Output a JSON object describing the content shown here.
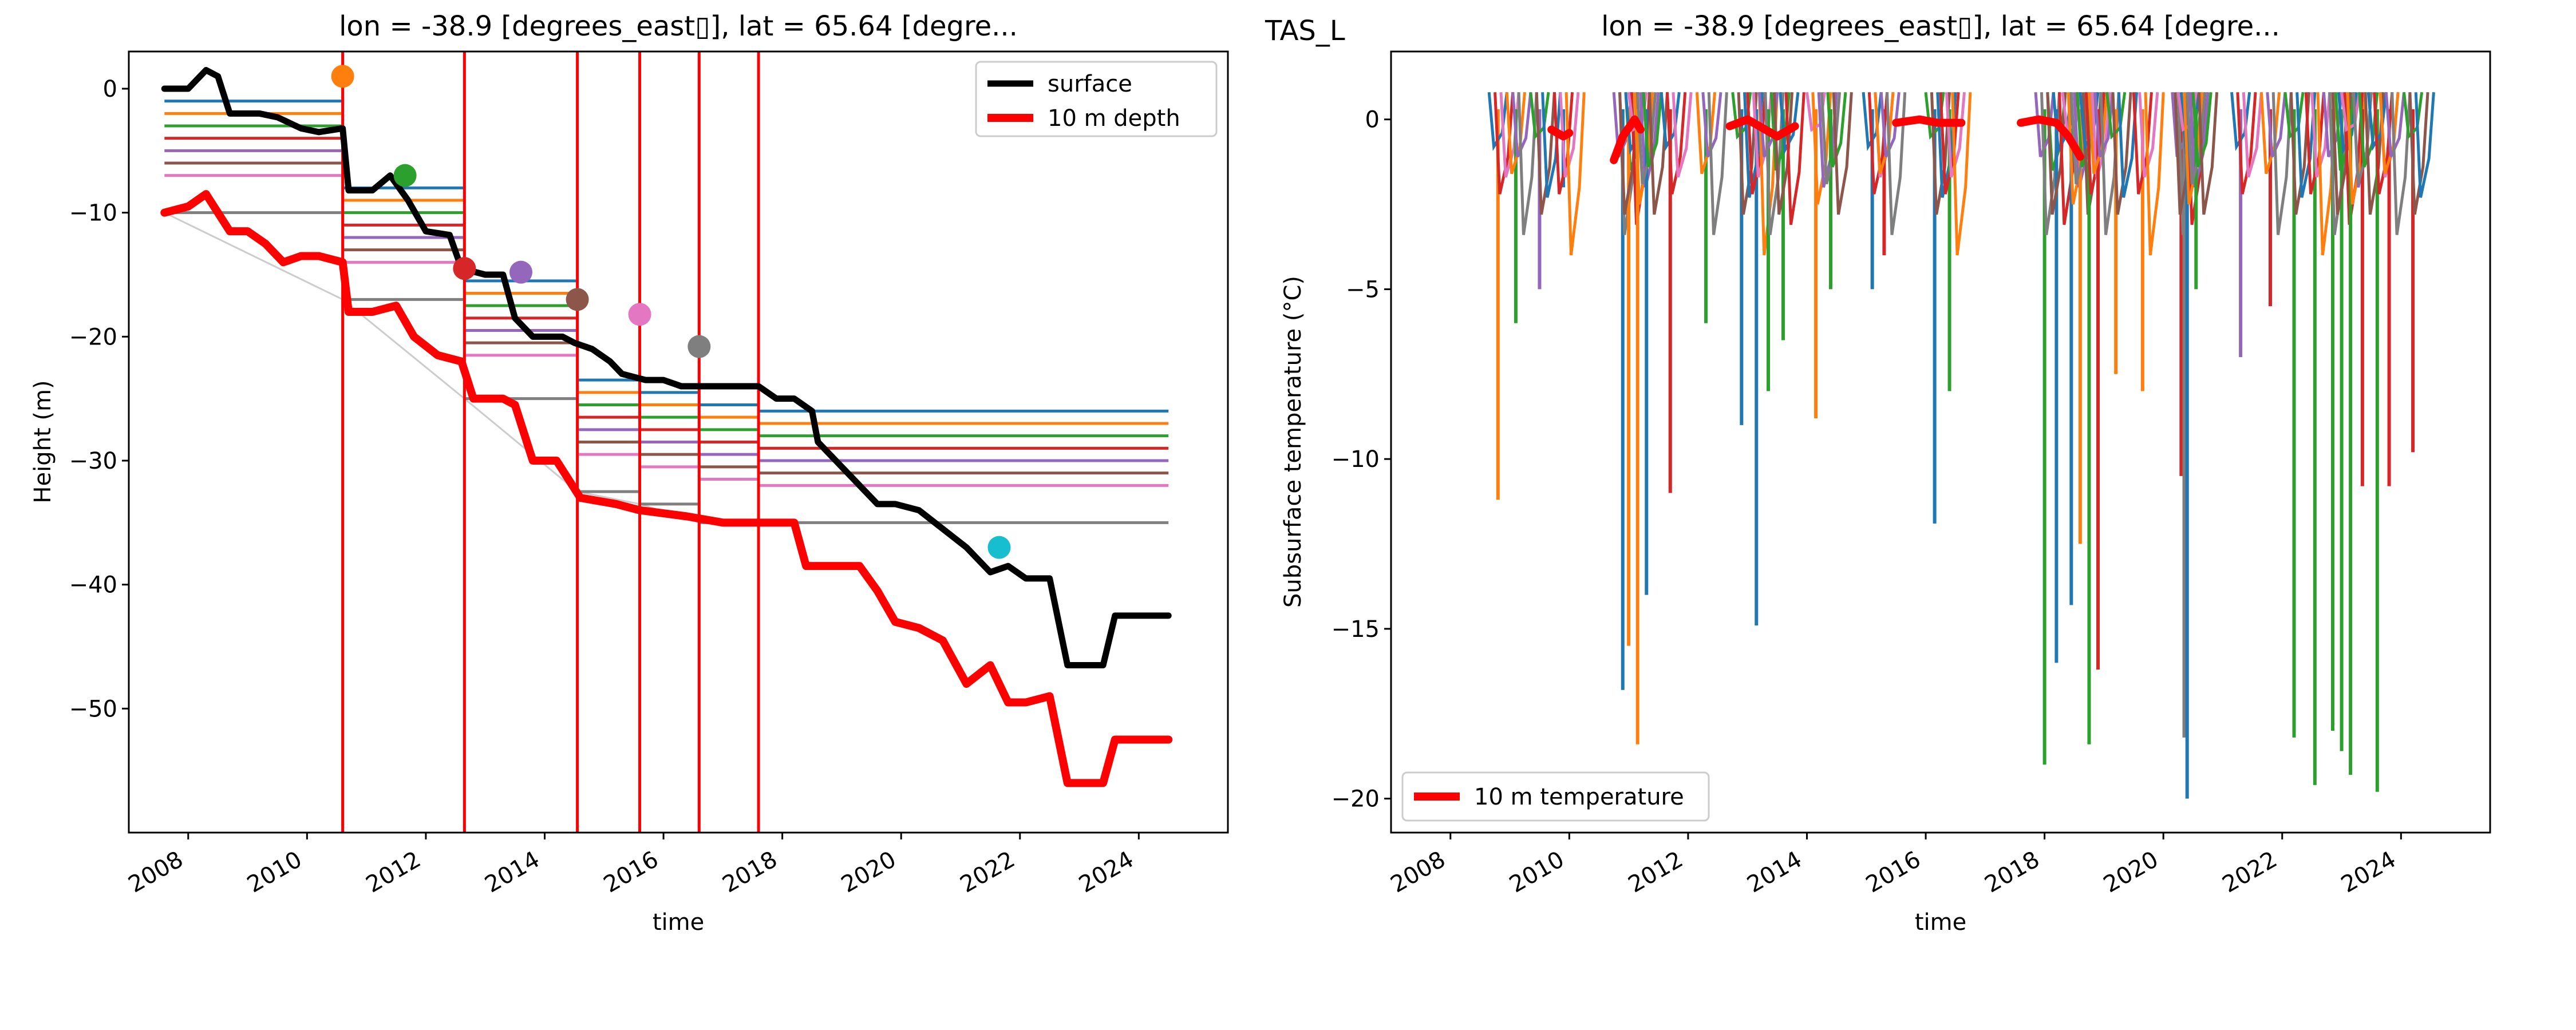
{
  "figure_label": "TAS_L",
  "chart_data": [
    {
      "type": "line",
      "title": "lon = -38.9 [degrees_east▯], lat = 65.64 [degre...",
      "xlabel": "time",
      "ylabel": "Height (m)",
      "xlim": [
        2007.0,
        2025.5
      ],
      "ylim": [
        -60,
        3
      ],
      "x_ticks": [
        2008,
        2010,
        2012,
        2014,
        2016,
        2018,
        2020,
        2022,
        2024
      ],
      "y_ticks": [
        0,
        -10,
        -20,
        -30,
        -40,
        -50
      ],
      "legend": {
        "placement": "upper right",
        "entries": [
          "surface",
          "10 m depth"
        ]
      },
      "series": [
        {
          "name": "surface",
          "color": "#000000",
          "x": [
            2007.6,
            2008.0,
            2008.3,
            2008.5,
            2008.7,
            2009.2,
            2009.5,
            2009.9,
            2010.2,
            2010.6,
            2010.7,
            2011.1,
            2011.4,
            2011.7,
            2012.0,
            2012.4,
            2012.6,
            2013.0,
            2013.3,
            2013.5,
            2013.8,
            2014.0,
            2014.3,
            2014.5,
            2014.8,
            2015.1,
            2015.3,
            2015.7,
            2016.0,
            2016.3,
            2017.6,
            2017.9,
            2018.2,
            2018.5,
            2018.6,
            2019.6,
            2019.9,
            2020.3,
            2020.7,
            2021.1,
            2021.5,
            2021.8,
            2022.1,
            2022.5,
            2022.8,
            2023.2,
            2023.4,
            2023.6,
            2024.5
          ],
          "y": [
            0,
            0,
            1.5,
            1,
            -2,
            -2,
            -2.3,
            -3.2,
            -3.5,
            -3.2,
            -8.2,
            -8.2,
            -7,
            -9,
            -11.5,
            -11.8,
            -14.5,
            -15,
            -15,
            -18.5,
            -20,
            -20,
            -20,
            -20.5,
            -21,
            -22,
            -23,
            -23.5,
            -23.5,
            -24,
            -24,
            -25,
            -25,
            -26,
            -28.5,
            -33.5,
            -33.5,
            -34,
            -35.5,
            -37,
            -39,
            -38.5,
            -39.5,
            -39.5,
            -46.5,
            -46.5,
            -46.5,
            -42.5,
            -42.5
          ]
        },
        {
          "name": "10 m depth",
          "color": "#ff0000",
          "x": [
            2007.6,
            2008.0,
            2008.3,
            2008.7,
            2009.0,
            2009.3,
            2009.6,
            2009.9,
            2010.2,
            2010.6,
            2010.7,
            2011.1,
            2011.5,
            2011.8,
            2012.2,
            2012.6,
            2012.8,
            2013.3,
            2013.5,
            2013.8,
            2014.2,
            2014.6,
            2015.2,
            2015.6,
            2016.4,
            2017.0,
            2017.6,
            2018.2,
            2018.4,
            2019.3,
            2019.6,
            2019.9,
            2020.3,
            2020.7,
            2021.1,
            2021.5,
            2021.8,
            2022.1,
            2022.5,
            2022.8,
            2023.1,
            2023.4,
            2023.6,
            2024.5
          ],
          "y": [
            -10,
            -9.5,
            -8.5,
            -11.5,
            -11.5,
            -12.5,
            -14,
            -13.5,
            -13.5,
            -14,
            -18,
            -18,
            -17.5,
            -20,
            -21.5,
            -22,
            -25,
            -25,
            -25.5,
            -30,
            -30,
            -33,
            -33.5,
            -34,
            -34.5,
            -35,
            -35,
            -35,
            -38.5,
            -38.5,
            -40.5,
            -43,
            -43.5,
            -44.5,
            -48,
            -46.5,
            -49.5,
            -49.5,
            -49,
            -56,
            -56,
            -56,
            -52.5,
            -52.5
          ]
        }
      ],
      "vertical_lines_x": [
        2010.6,
        2012.65,
        2014.55,
        2015.6,
        2016.6,
        2017.6
      ],
      "markers": [
        {
          "x": 2010.6,
          "y": 1.0,
          "color": "#ff7f0e"
        },
        {
          "x": 2011.65,
          "y": -7.0,
          "color": "#2ca02c"
        },
        {
          "x": 2012.65,
          "y": -14.5,
          "color": "#d62728"
        },
        {
          "x": 2013.6,
          "y": -14.8,
          "color": "#9467bd"
        },
        {
          "x": 2014.55,
          "y": -17.0,
          "color": "#8c564b"
        },
        {
          "x": 2015.6,
          "y": -18.2,
          "color": "#e377c2"
        },
        {
          "x": 2016.6,
          "y": -20.8,
          "color": "#7f7f7f"
        },
        {
          "x": 2021.65,
          "y": -37.0,
          "color": "#17becf"
        }
      ],
      "sensor_segments": [
        {
          "x": [
            2007.6,
            2010.6
          ],
          "offsets": [
            -1,
            -2,
            -3,
            -4,
            -5,
            -6,
            -7,
            -10
          ]
        },
        {
          "x": [
            2010.6,
            2012.65
          ],
          "offsets": [
            -8,
            -9,
            -10,
            -11,
            -12,
            -13,
            -14,
            -17
          ]
        },
        {
          "x": [
            2012.65,
            2014.55
          ],
          "offsets": [
            -15.5,
            -16.5,
            -17.5,
            -18.5,
            -19.5,
            -20.5,
            -21.5,
            -25
          ]
        },
        {
          "x": [
            2014.55,
            2015.6
          ],
          "offsets": [
            -23.5,
            -24.5,
            -25.5,
            -26.5,
            -27.5,
            -28.5,
            -29.5,
            -32.5
          ]
        },
        {
          "x": [
            2015.6,
            2016.6
          ],
          "offsets": [
            -24.5,
            -25.5,
            -26.5,
            -27.5,
            -28.5,
            -29.5,
            -30.5,
            -33.5
          ]
        },
        {
          "x": [
            2016.6,
            2017.6
          ],
          "offsets": [
            -25.5,
            -26.5,
            -27.5,
            -28.5,
            -29.5,
            -30.5,
            -31.5,
            -35
          ]
        },
        {
          "x": [
            2017.6,
            2024.5
          ],
          "offsets": [
            -26,
            -27,
            -28,
            -29,
            -30,
            -31,
            -32,
            -35
          ]
        }
      ]
    },
    {
      "type": "line",
      "title": "lon = -38.9 [degrees_east▯], lat = 65.64 [degre...",
      "xlabel": "time",
      "ylabel": "Subsurface temperature (°C)",
      "xlim": [
        2007.0,
        2025.5
      ],
      "ylim": [
        -21,
        2
      ],
      "x_ticks": [
        2008,
        2010,
        2012,
        2014,
        2016,
        2018,
        2020,
        2022,
        2024
      ],
      "y_ticks": [
        0,
        -5,
        -10,
        -15,
        -20
      ],
      "legend": {
        "placement": "lower left",
        "entries": [
          "10 m temperature"
        ]
      },
      "series": [
        {
          "name": "10 m temperature",
          "color": "#ff0000",
          "segments": [
            {
              "x": [
                2009.7,
                2009.9,
                2010.0
              ],
              "y": [
                -0.3,
                -0.5,
                -0.4
              ]
            },
            {
              "x": [
                2010.75,
                2010.9,
                2011.1,
                2011.2
              ],
              "y": [
                -1.2,
                -0.5,
                0,
                -0.3
              ]
            },
            {
              "x": [
                2012.7,
                2013.0,
                2013.3,
                2013.5,
                2013.8
              ],
              "y": [
                -0.2,
                0,
                -0.3,
                -0.5,
                -0.2
              ]
            },
            {
              "x": [
                2015.5,
                2015.9,
                2016.2,
                2016.6
              ],
              "y": [
                -0.1,
                0,
                -0.1,
                -0.1
              ]
            },
            {
              "x": [
                2017.6,
                2017.9,
                2018.2,
                2018.4,
                2018.6
              ],
              "y": [
                -0.1,
                0,
                -0.1,
                -0.5,
                -1.1
              ]
            }
          ]
        }
      ],
      "sensor_series_colors": [
        "#1f77b4",
        "#ff7f0e",
        "#2ca02c",
        "#d62728",
        "#9467bd",
        "#8c564b",
        "#e377c2",
        "#7f7f7f"
      ],
      "sensor_spikes": [
        {
          "x": 2008.8,
          "y": -11.2,
          "color": "#ff7f0e"
        },
        {
          "x": 2009.1,
          "y": -6,
          "color": "#2ca02c"
        },
        {
          "x": 2009.5,
          "y": -5,
          "color": "#9467bd"
        },
        {
          "x": 2009.9,
          "y": -2,
          "color": "#1f77b4"
        },
        {
          "x": 2010.9,
          "y": -16.8,
          "color": "#1f77b4"
        },
        {
          "x": 2011.0,
          "y": -15.5,
          "color": "#ff7f0e"
        },
        {
          "x": 2011.15,
          "y": -18.4,
          "color": "#ff7f0e"
        },
        {
          "x": 2011.3,
          "y": -14,
          "color": "#1f77b4"
        },
        {
          "x": 2011.7,
          "y": -11,
          "color": "#d62728"
        },
        {
          "x": 2012.3,
          "y": -6,
          "color": "#2ca02c"
        },
        {
          "x": 2012.9,
          "y": -9,
          "color": "#1f77b4"
        },
        {
          "x": 2013.15,
          "y": -14.9,
          "color": "#1f77b4"
        },
        {
          "x": 2013.35,
          "y": -8,
          "color": "#2ca02c"
        },
        {
          "x": 2013.6,
          "y": -6.5,
          "color": "#2ca02c"
        },
        {
          "x": 2014.15,
          "y": -8.8,
          "color": "#ff7f0e"
        },
        {
          "x": 2014.4,
          "y": -5,
          "color": "#2ca02c"
        },
        {
          "x": 2015.1,
          "y": -5,
          "color": "#1f77b4"
        },
        {
          "x": 2015.3,
          "y": -4,
          "color": "#d62728"
        },
        {
          "x": 2016.15,
          "y": -11.9,
          "color": "#1f77b4"
        },
        {
          "x": 2016.4,
          "y": -8,
          "color": "#2ca02c"
        },
        {
          "x": 2018.0,
          "y": -19,
          "color": "#2ca02c"
        },
        {
          "x": 2018.2,
          "y": -16,
          "color": "#1f77b4"
        },
        {
          "x": 2018.45,
          "y": -14.3,
          "color": "#1f77b4"
        },
        {
          "x": 2018.6,
          "y": -12.5,
          "color": "#ff7f0e"
        },
        {
          "x": 2018.75,
          "y": -18.4,
          "color": "#2ca02c"
        },
        {
          "x": 2018.9,
          "y": -16.2,
          "color": "#d62728"
        },
        {
          "x": 2019.2,
          "y": -7.5,
          "color": "#ff7f0e"
        },
        {
          "x": 2019.65,
          "y": -8,
          "color": "#ff7f0e"
        },
        {
          "x": 2020.3,
          "y": -10.5,
          "color": "#d62728"
        },
        {
          "x": 2020.35,
          "y": -18.2,
          "color": "#7f7f7f"
        },
        {
          "x": 2020.4,
          "y": -20,
          "color": "#1f77b4"
        },
        {
          "x": 2020.55,
          "y": -5,
          "color": "#2ca02c"
        },
        {
          "x": 2021.3,
          "y": -7,
          "color": "#9467bd"
        },
        {
          "x": 2021.8,
          "y": -5.5,
          "color": "#d62728"
        },
        {
          "x": 2022.2,
          "y": -18.2,
          "color": "#2ca02c"
        },
        {
          "x": 2022.55,
          "y": -19.6,
          "color": "#2ca02c"
        },
        {
          "x": 2022.85,
          "y": -18,
          "color": "#2ca02c"
        },
        {
          "x": 2023.0,
          "y": -18.6,
          "color": "#2ca02c"
        },
        {
          "x": 2023.15,
          "y": -19.3,
          "color": "#2ca02c"
        },
        {
          "x": 2023.35,
          "y": -10.8,
          "color": "#d62728"
        },
        {
          "x": 2023.6,
          "y": -19.8,
          "color": "#2ca02c"
        },
        {
          "x": 2023.8,
          "y": -10.8,
          "color": "#d62728"
        },
        {
          "x": 2024.2,
          "y": -9.8,
          "color": "#d62728"
        }
      ]
    }
  ]
}
